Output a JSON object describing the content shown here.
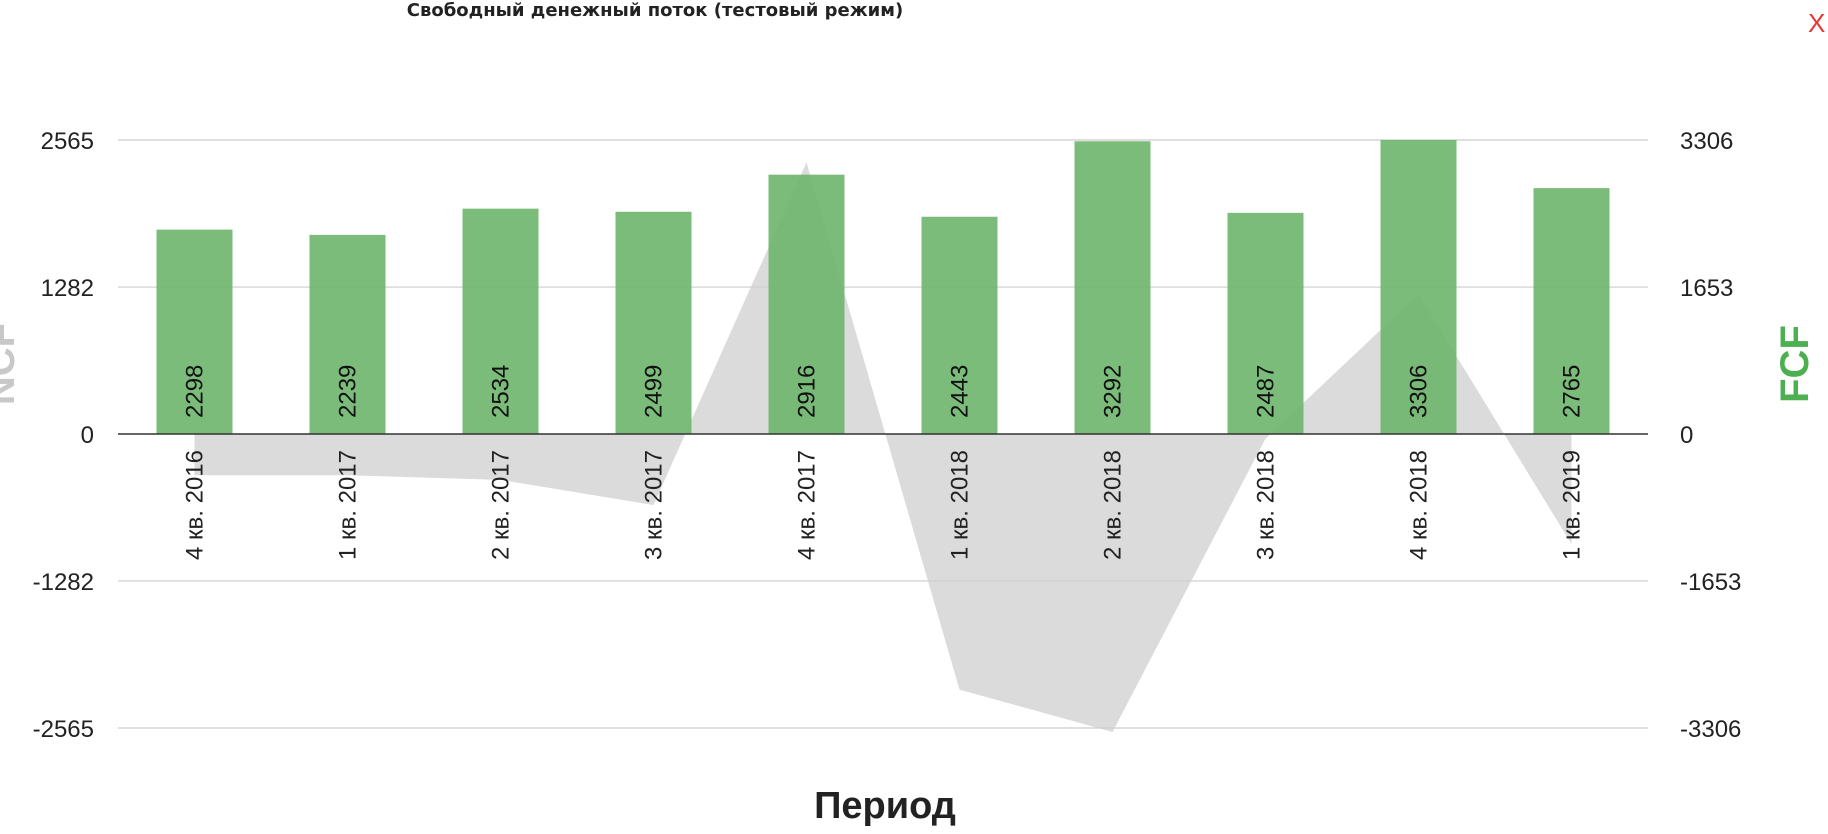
{
  "title": "Свободный денежный поток (тестовый режим)",
  "close_label": "X",
  "colors": {
    "bars": "#6db56d",
    "area": "#cfcfcf",
    "right_axis_title": "#4caf50",
    "left_axis_title": "#c8c8c8",
    "close": "#e53935",
    "grid": "#cccccc"
  },
  "chart_data": {
    "type": "bar",
    "xlabel": "Период",
    "categories": [
      "4 кв. 2016",
      "1 кв. 2017",
      "2 кв. 2017",
      "3 кв. 2017",
      "4 кв. 2017",
      "1 кв. 2018",
      "2 кв. 2018",
      "3 кв. 2018",
      "4 кв. 2018",
      "1 кв. 2019"
    ],
    "left_axis": {
      "title": "NCF",
      "ticks": [
        2565,
        1282,
        0,
        -1282,
        -2565
      ],
      "ylim": [
        -2565,
        2565
      ]
    },
    "right_axis": {
      "title": "FCF",
      "ticks": [
        3306,
        1653,
        0,
        -1653,
        -3306
      ],
      "ylim": [
        -3306,
        3306
      ]
    },
    "series": [
      {
        "name": "FCF",
        "type": "bar",
        "axis": "right",
        "values": [
          2298,
          2239,
          2534,
          2499,
          2916,
          2443,
          3292,
          2487,
          3306,
          2765
        ],
        "labels": [
          "2298",
          "2239",
          "2534",
          "2499",
          "2916",
          "2443",
          "3292",
          "2487",
          "3306",
          "2765"
        ]
      },
      {
        "name": "NCF",
        "type": "area",
        "axis": "left",
        "values": [
          -360,
          -360,
          -400,
          -620,
          2370,
          -2230,
          -2600,
          -40,
          1220,
          -960
        ]
      }
    ],
    "grid": true
  }
}
